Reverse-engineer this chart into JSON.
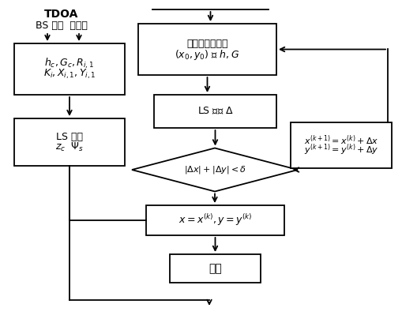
{
  "background": "#ffffff",
  "label_tdoa": "TDOA",
  "label_bs": "BS 分布  测量值",
  "box1_line1": "$h_c,G_c,R_{i,1}$",
  "box1_line2": "$K_i,X_{i,1},Y_{i,1}$",
  "box2_line1": "LS 估计",
  "box2_line2": "$z_c$  $\\Psi_s$",
  "box3_line1": "移动台初始坐标",
  "box3_line2": "$(x_0,y_0)$ 和 $h,G$",
  "box4_text": "LS 估计 $\\Delta$",
  "diamond_text": "$|\\Delta x|+|\\Delta y| < \\delta$",
  "box5_text": "$x=x^{(k)},y=y^{(k)}$",
  "box6_text": "结束",
  "box7_line1": "$x^{(k+1)}=x^{(k)}+\\Delta x$",
  "box7_line2": "$y^{(k+1)}=y^{(k)}+\\Delta y$",
  "line_color": "#000000",
  "box_bg": "#ffffff",
  "box_edge": "#000000"
}
